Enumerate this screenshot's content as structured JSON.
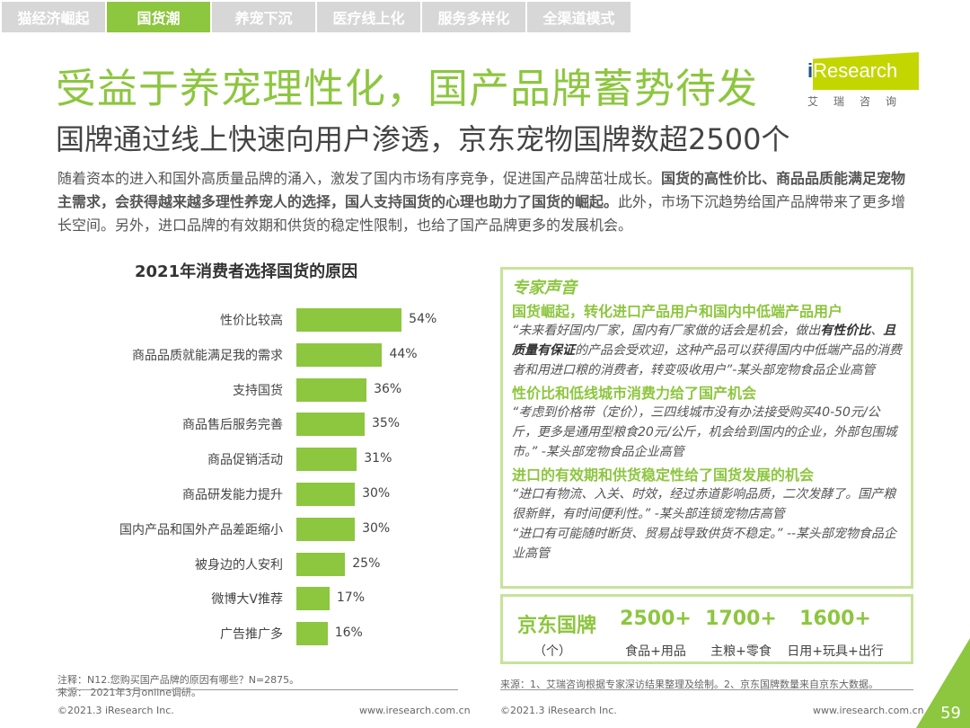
{
  "tabs": [
    "猫经济崛起",
    "国货潮",
    "养宠下沉",
    "医疗线上化",
    "服务多样化",
    "全渠道模式"
  ],
  "active_tab": 1,
  "title": "受益于养宠理性化，国产品牌蓄势待发",
  "logo": {
    "text": "iResearch",
    "cn": "艾瑞咨询"
  },
  "subtitle": "国牌通过线上快速向用户渗透，京东宠物国牌数超2500个",
  "paragraph": [
    {
      "t": "随着资本的进入和国外高质量品牌的涌入，激发了国内市场有序竞争，促进国产品牌茁壮成长。",
      "b": false
    },
    {
      "t": "国货的高性价比、商品品质能满足宠物主需求，会获得越来越多理性养宠人的选择，国人支持国货的心理也助力了国货的崛起。",
      "b": true
    },
    {
      "t": "此外，市场下沉趋势给国产品牌带来了更多增长空间。另外，进口品牌的有效期和供货的稳定性限制，也给了国产品牌更多的发展机会。",
      "b": false
    }
  ],
  "chart_data": {
    "type": "bar",
    "title": "2021年消费者选择国货的原因",
    "categories": [
      "性价比较高",
      "商品品质就能满足我的需求",
      "支持国货",
      "商品售后服务完善",
      "商品促销活动",
      "商品研发能力提升",
      "国内产品和国外产品差距缩小",
      "被身边的人安利",
      "微博大V推荐",
      "广告推广多"
    ],
    "values": [
      54,
      44,
      36,
      35,
      31,
      30,
      30,
      25,
      17,
      16
    ],
    "labels": [
      "54%",
      "44%",
      "36%",
      "35%",
      "31%",
      "30%",
      "30%",
      "25%",
      "17%",
      "16%"
    ],
    "color": "#8dc63f"
  },
  "expert": {
    "title": "专家声音",
    "h1": "国货崛起，转化进口产品用户和国内中低端产品用户",
    "q1a": "“未来看好国内厂家，国内有厂家做的话会是机会，做出",
    "q1b": "有性价比",
    "q1c": "、",
    "q1d": "且质量有保证",
    "q1e": "的产品会受欢迎，这种产品可以获得国内中低端产品的消费者和用进口粮的消费者，转变吸收用户”-某头部宠物食品企业高管",
    "h2": "性价比和低线城市消费力给了国产机会",
    "q2": "“考虑到价格带（定价），三四线城市没有办法接受购买40-50元/公斤，更多是通用型粮食20元/公斤，机会给到国内的企业，外部包围城市。” -某头部宠物食品企业高管",
    "h3": "进口的有效期和供货稳定性给了国货发展的机会",
    "q3": "“进口有物流、入关、时效，经过赤道影响品质，二次发酵了。国产粮很新鲜，有时间便利性。” -某头部连锁宠物店高管",
    "q4": "“进口有可能随时断货、贸易战导致供货不稳定。” --某头部宠物食品企业高管"
  },
  "stats": {
    "label": "京东国牌",
    "unit": "（个）",
    "items": [
      {
        "v": "2500+",
        "d": "食品+用品"
      },
      {
        "v": "1700+",
        "d": "主粮+零食"
      },
      {
        "v": "1600+",
        "d": "日用+玩具+出行"
      }
    ]
  },
  "notes": {
    "left1": "注释：N12.您购买国产品牌的原因有哪些？N=2875。",
    "left2": "来源： 2021年3月online调研。",
    "right": "来源：1、艾瑞咨询根据专家深访结果整理及绘制。2、京东国牌数量来自京东大数据。"
  },
  "footer": {
    "copyright": "©2021.3 iResearch Inc.",
    "url": "www.iresearch.com.cn",
    "page": "59"
  }
}
